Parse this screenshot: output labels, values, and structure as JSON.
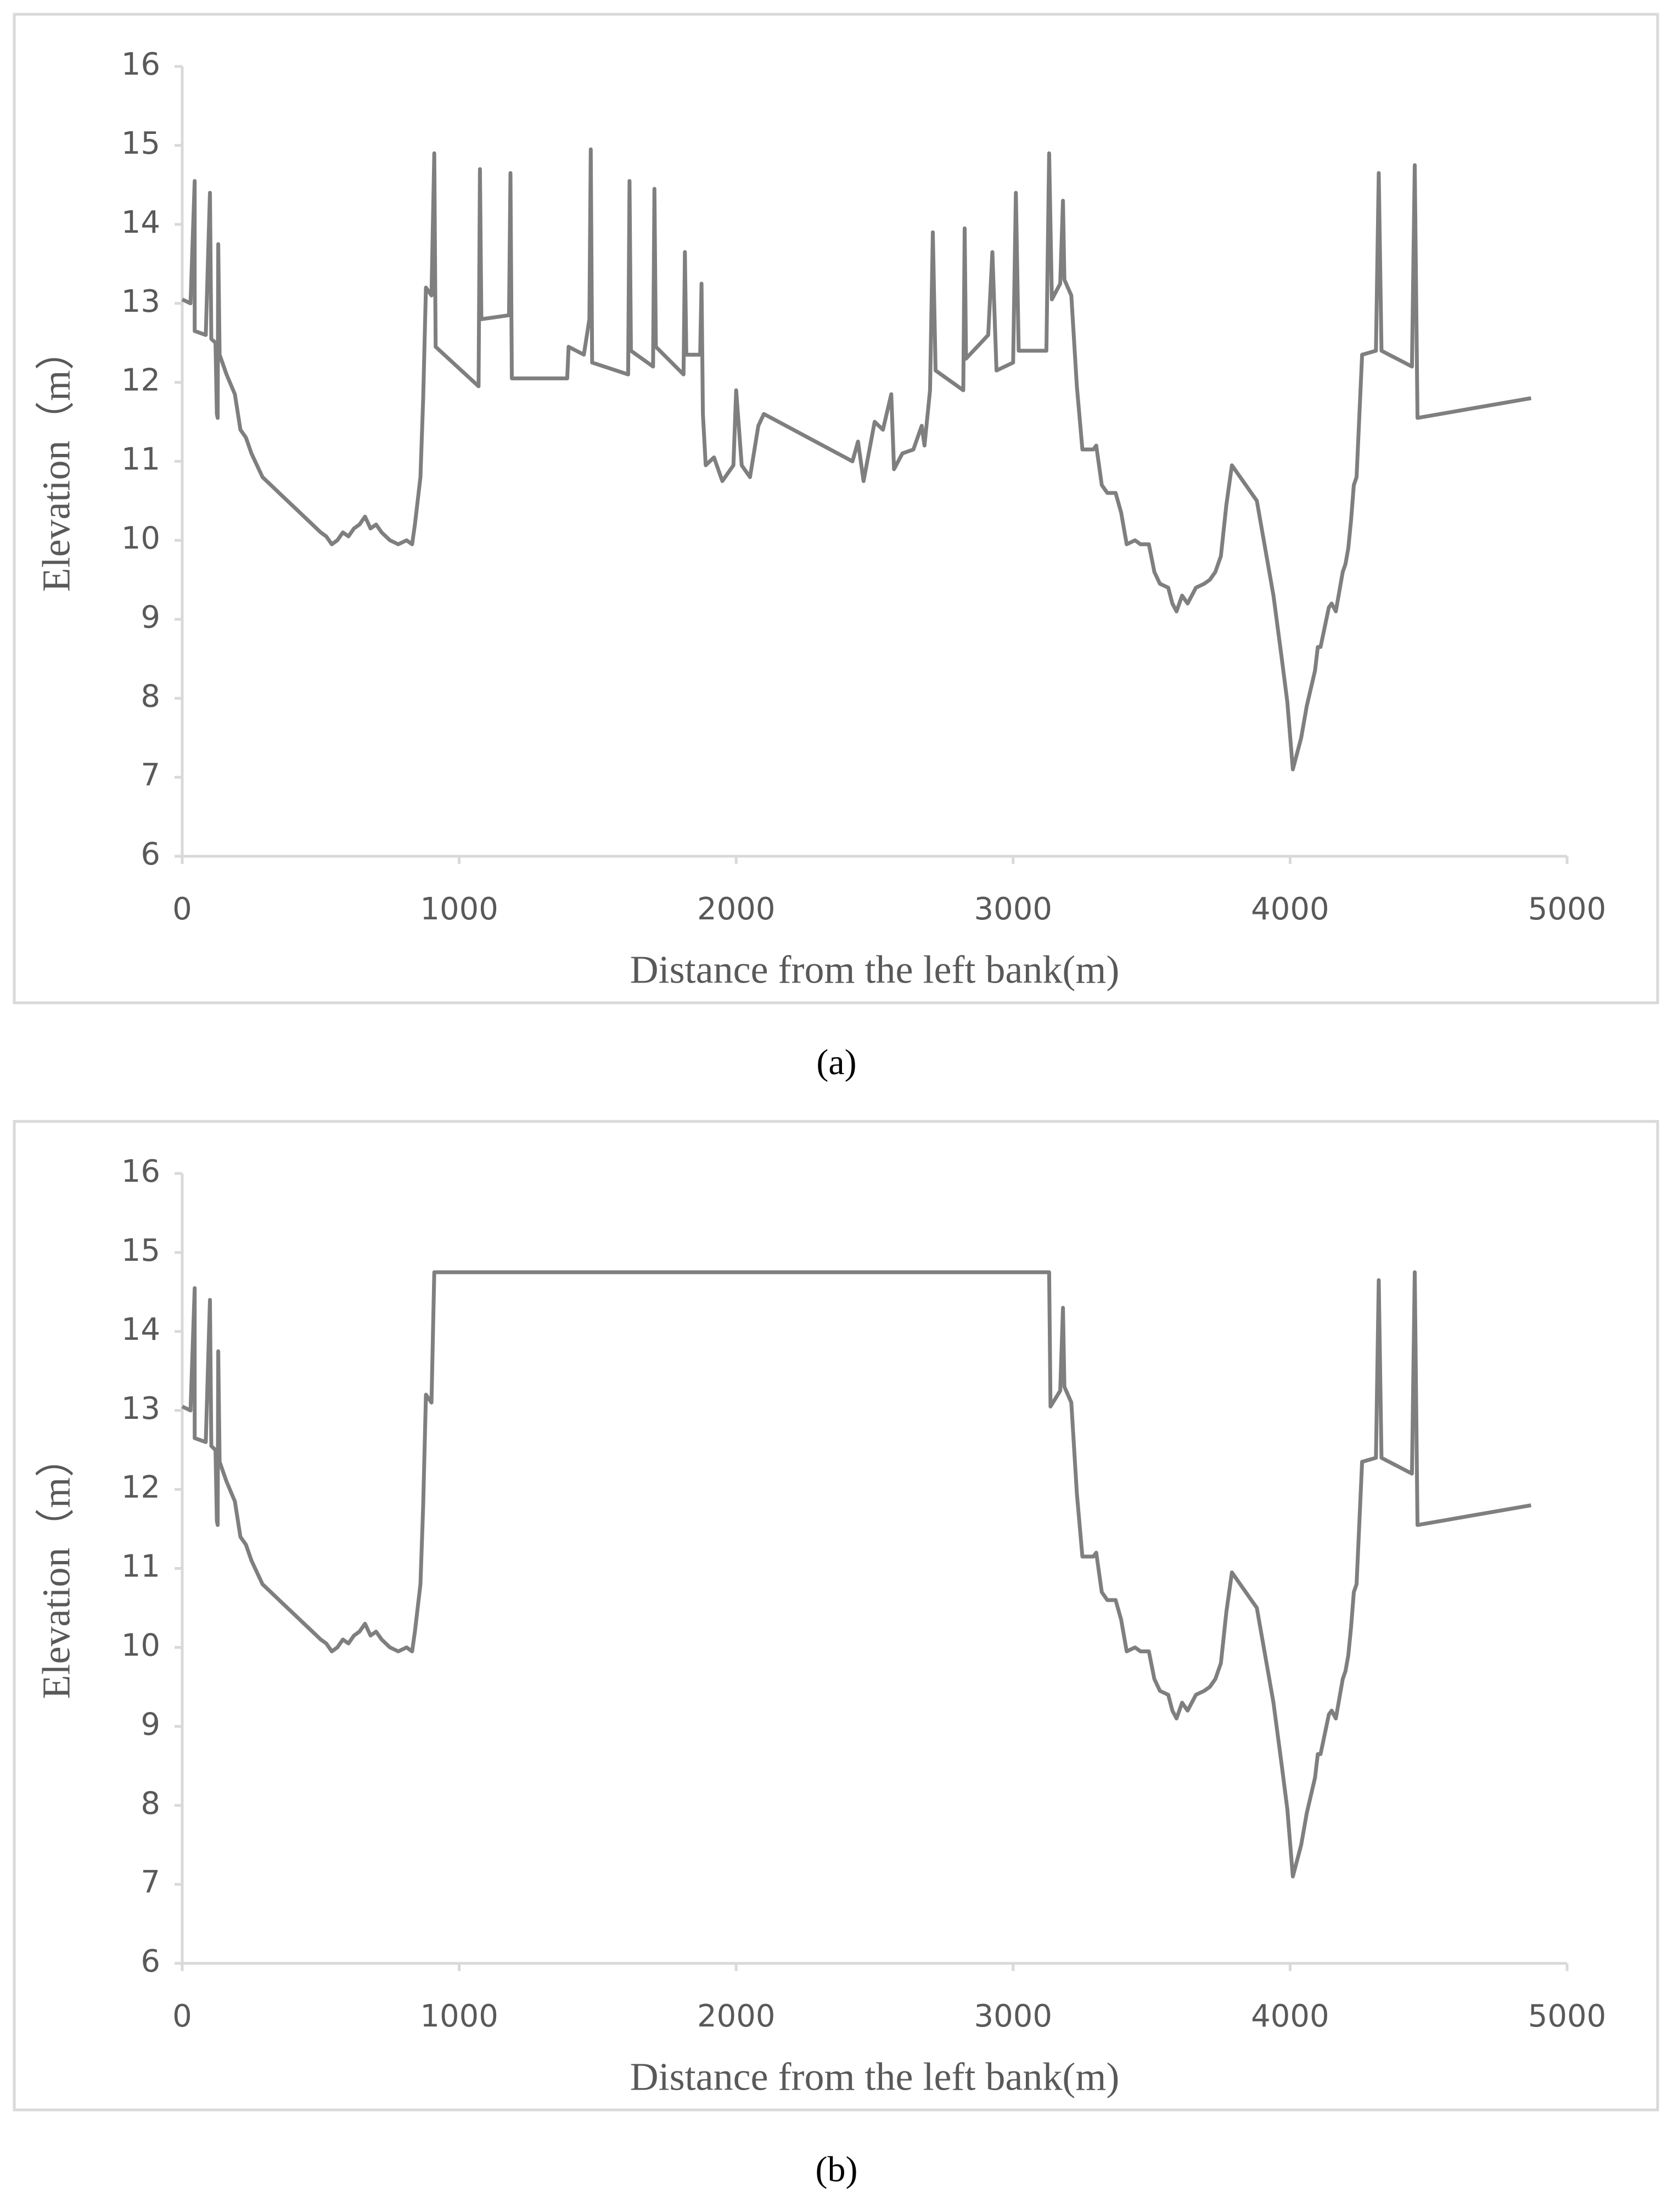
{
  "chart_data": [
    {
      "type": "line",
      "caption": "(a)",
      "x_label": "Distance from the left bank(m)",
      "y_label": "Elevation（m）",
      "color": "#7f7f7f",
      "xlim": [
        0,
        5000
      ],
      "xticks": [
        0,
        1000,
        2000,
        3000,
        4000,
        5000
      ],
      "ylim": [
        6,
        16
      ],
      "yticks": [
        6,
        7,
        8,
        9,
        10,
        11,
        12,
        13,
        14,
        15,
        16
      ],
      "x": [
        0,
        30,
        45,
        45,
        85,
        100,
        105,
        120,
        125,
        128,
        130,
        135,
        160,
        190,
        210,
        230,
        250,
        270,
        290,
        320,
        350,
        380,
        410,
        440,
        470,
        500,
        520,
        540,
        560,
        580,
        600,
        620,
        640,
        660,
        680,
        700,
        720,
        750,
        780,
        810,
        830,
        840,
        860,
        870,
        880,
        900,
        910,
        915,
        1070,
        1075,
        1080,
        1180,
        1185,
        1190,
        1390,
        1395,
        1450,
        1470,
        1475,
        1480,
        1610,
        1615,
        1620,
        1700,
        1705,
        1710,
        1810,
        1815,
        1820,
        1870,
        1875,
        1880,
        1890,
        1920,
        1950,
        1990,
        2000,
        2020,
        2050,
        2080,
        2100,
        2420,
        2440,
        2460,
        2500,
        2530,
        2560,
        2570,
        2600,
        2640,
        2670,
        2680,
        2700,
        2710,
        2720,
        2820,
        2825,
        2830,
        2910,
        2925,
        2940,
        3000,
        3010,
        3020,
        3120,
        3130,
        3140,
        3170,
        3180,
        3185,
        3210,
        3230,
        3250,
        3290,
        3300,
        3320,
        3340,
        3370,
        3390,
        3410,
        3440,
        3460,
        3490,
        3510,
        3530,
        3560,
        3575,
        3590,
        3610,
        3630,
        3660,
        3690,
        3710,
        3730,
        3750,
        3770,
        3790,
        3880,
        3940,
        3970,
        3990,
        4010,
        4040,
        4060,
        4090,
        4100,
        4110,
        4140,
        4150,
        4165,
        4190,
        4200,
        4210,
        4220,
        4230,
        4240,
        4260,
        4310,
        4320,
        4330,
        4440,
        4450,
        4460,
        4870
      ],
      "values": [
        13.05,
        13.0,
        14.55,
        12.65,
        12.6,
        14.4,
        12.55,
        12.5,
        11.6,
        11.55,
        13.75,
        12.35,
        12.1,
        11.85,
        11.4,
        11.3,
        11.1,
        10.95,
        10.8,
        10.7,
        10.6,
        10.5,
        10.4,
        10.3,
        10.2,
        10.1,
        10.05,
        9.95,
        10.0,
        10.1,
        10.05,
        10.15,
        10.2,
        10.3,
        10.15,
        10.2,
        10.1,
        10.0,
        9.95,
        10.0,
        9.95,
        10.2,
        10.8,
        11.8,
        13.2,
        13.1,
        14.9,
        12.45,
        11.95,
        14.7,
        12.8,
        12.85,
        14.65,
        12.05,
        12.05,
        12.45,
        12.35,
        12.8,
        14.95,
        12.25,
        12.1,
        14.55,
        12.4,
        12.2,
        14.45,
        12.45,
        12.1,
        13.65,
        12.35,
        12.35,
        13.25,
        11.6,
        10.95,
        11.05,
        10.75,
        10.95,
        11.9,
        10.95,
        10.8,
        11.45,
        11.6,
        11.0,
        11.25,
        10.75,
        11.5,
        11.4,
        11.85,
        10.9,
        11.1,
        11.15,
        11.45,
        11.2,
        11.9,
        13.9,
        12.15,
        11.9,
        13.95,
        12.3,
        12.6,
        13.65,
        12.15,
        12.25,
        14.4,
        12.4,
        12.4,
        14.9,
        13.05,
        13.25,
        14.3,
        13.3,
        13.1,
        11.95,
        11.15,
        11.15,
        11.2,
        10.7,
        10.6,
        10.6,
        10.35,
        9.95,
        10.0,
        9.95,
        9.95,
        9.6,
        9.45,
        9.4,
        9.2,
        9.1,
        9.3,
        9.2,
        9.4,
        9.45,
        9.5,
        9.6,
        9.8,
        10.45,
        10.95,
        10.5,
        9.3,
        8.5,
        7.95,
        7.1,
        7.5,
        7.9,
        8.35,
        8.65,
        8.65,
        9.15,
        9.2,
        9.1,
        9.6,
        9.7,
        9.9,
        10.25,
        10.7,
        10.8,
        12.35,
        12.4,
        14.65,
        12.4,
        12.2,
        14.75,
        11.55,
        11.8
      ]
    },
    {
      "type": "line",
      "caption": "(b)",
      "x_label": "Distance from the left bank(m)",
      "y_label": "Elevation（m）",
      "color": "#7f7f7f",
      "xlim": [
        0,
        5000
      ],
      "xticks": [
        0,
        1000,
        2000,
        3000,
        4000,
        5000
      ],
      "ylim": [
        6,
        16
      ],
      "yticks": [
        6,
        7,
        8,
        9,
        10,
        11,
        12,
        13,
        14,
        15,
        16
      ],
      "x": [
        0,
        30,
        45,
        45,
        85,
        100,
        105,
        120,
        125,
        128,
        130,
        135,
        160,
        190,
        210,
        230,
        250,
        270,
        290,
        320,
        350,
        380,
        410,
        440,
        470,
        500,
        520,
        540,
        560,
        580,
        600,
        620,
        640,
        660,
        680,
        700,
        720,
        750,
        780,
        810,
        830,
        840,
        860,
        870,
        880,
        900,
        910,
        3130,
        3135,
        3170,
        3180,
        3185,
        3210,
        3230,
        3250,
        3290,
        3300,
        3320,
        3340,
        3370,
        3390,
        3410,
        3440,
        3460,
        3490,
        3510,
        3530,
        3560,
        3575,
        3590,
        3610,
        3630,
        3660,
        3690,
        3710,
        3730,
        3750,
        3770,
        3790,
        3880,
        3940,
        3970,
        3990,
        4010,
        4040,
        4060,
        4090,
        4100,
        4110,
        4140,
        4150,
        4165,
        4190,
        4200,
        4210,
        4220,
        4230,
        4240,
        4260,
        4310,
        4320,
        4330,
        4440,
        4450,
        4460,
        4870
      ],
      "values": [
        13.05,
        13.0,
        14.55,
        12.65,
        12.6,
        14.4,
        12.55,
        12.5,
        11.6,
        11.55,
        13.75,
        12.35,
        12.1,
        11.85,
        11.4,
        11.3,
        11.1,
        10.95,
        10.8,
        10.7,
        10.6,
        10.5,
        10.4,
        10.3,
        10.2,
        10.1,
        10.05,
        9.95,
        10.0,
        10.1,
        10.05,
        10.15,
        10.2,
        10.3,
        10.15,
        10.2,
        10.1,
        10.0,
        9.95,
        10.0,
        9.95,
        10.2,
        10.8,
        11.8,
        13.2,
        13.1,
        14.75,
        14.75,
        13.05,
        13.25,
        14.3,
        13.3,
        13.1,
        11.95,
        11.15,
        11.15,
        11.2,
        10.7,
        10.6,
        10.6,
        10.35,
        9.95,
        10.0,
        9.95,
        9.95,
        9.6,
        9.45,
        9.4,
        9.2,
        9.1,
        9.3,
        9.2,
        9.4,
        9.45,
        9.5,
        9.6,
        9.8,
        10.45,
        10.95,
        10.5,
        9.3,
        8.5,
        7.95,
        7.1,
        7.5,
        7.9,
        8.35,
        8.65,
        8.65,
        9.15,
        9.2,
        9.1,
        9.6,
        9.7,
        9.9,
        10.25,
        10.7,
        10.8,
        12.35,
        12.4,
        14.65,
        12.4,
        12.2,
        14.75,
        11.55,
        11.8
      ]
    }
  ]
}
